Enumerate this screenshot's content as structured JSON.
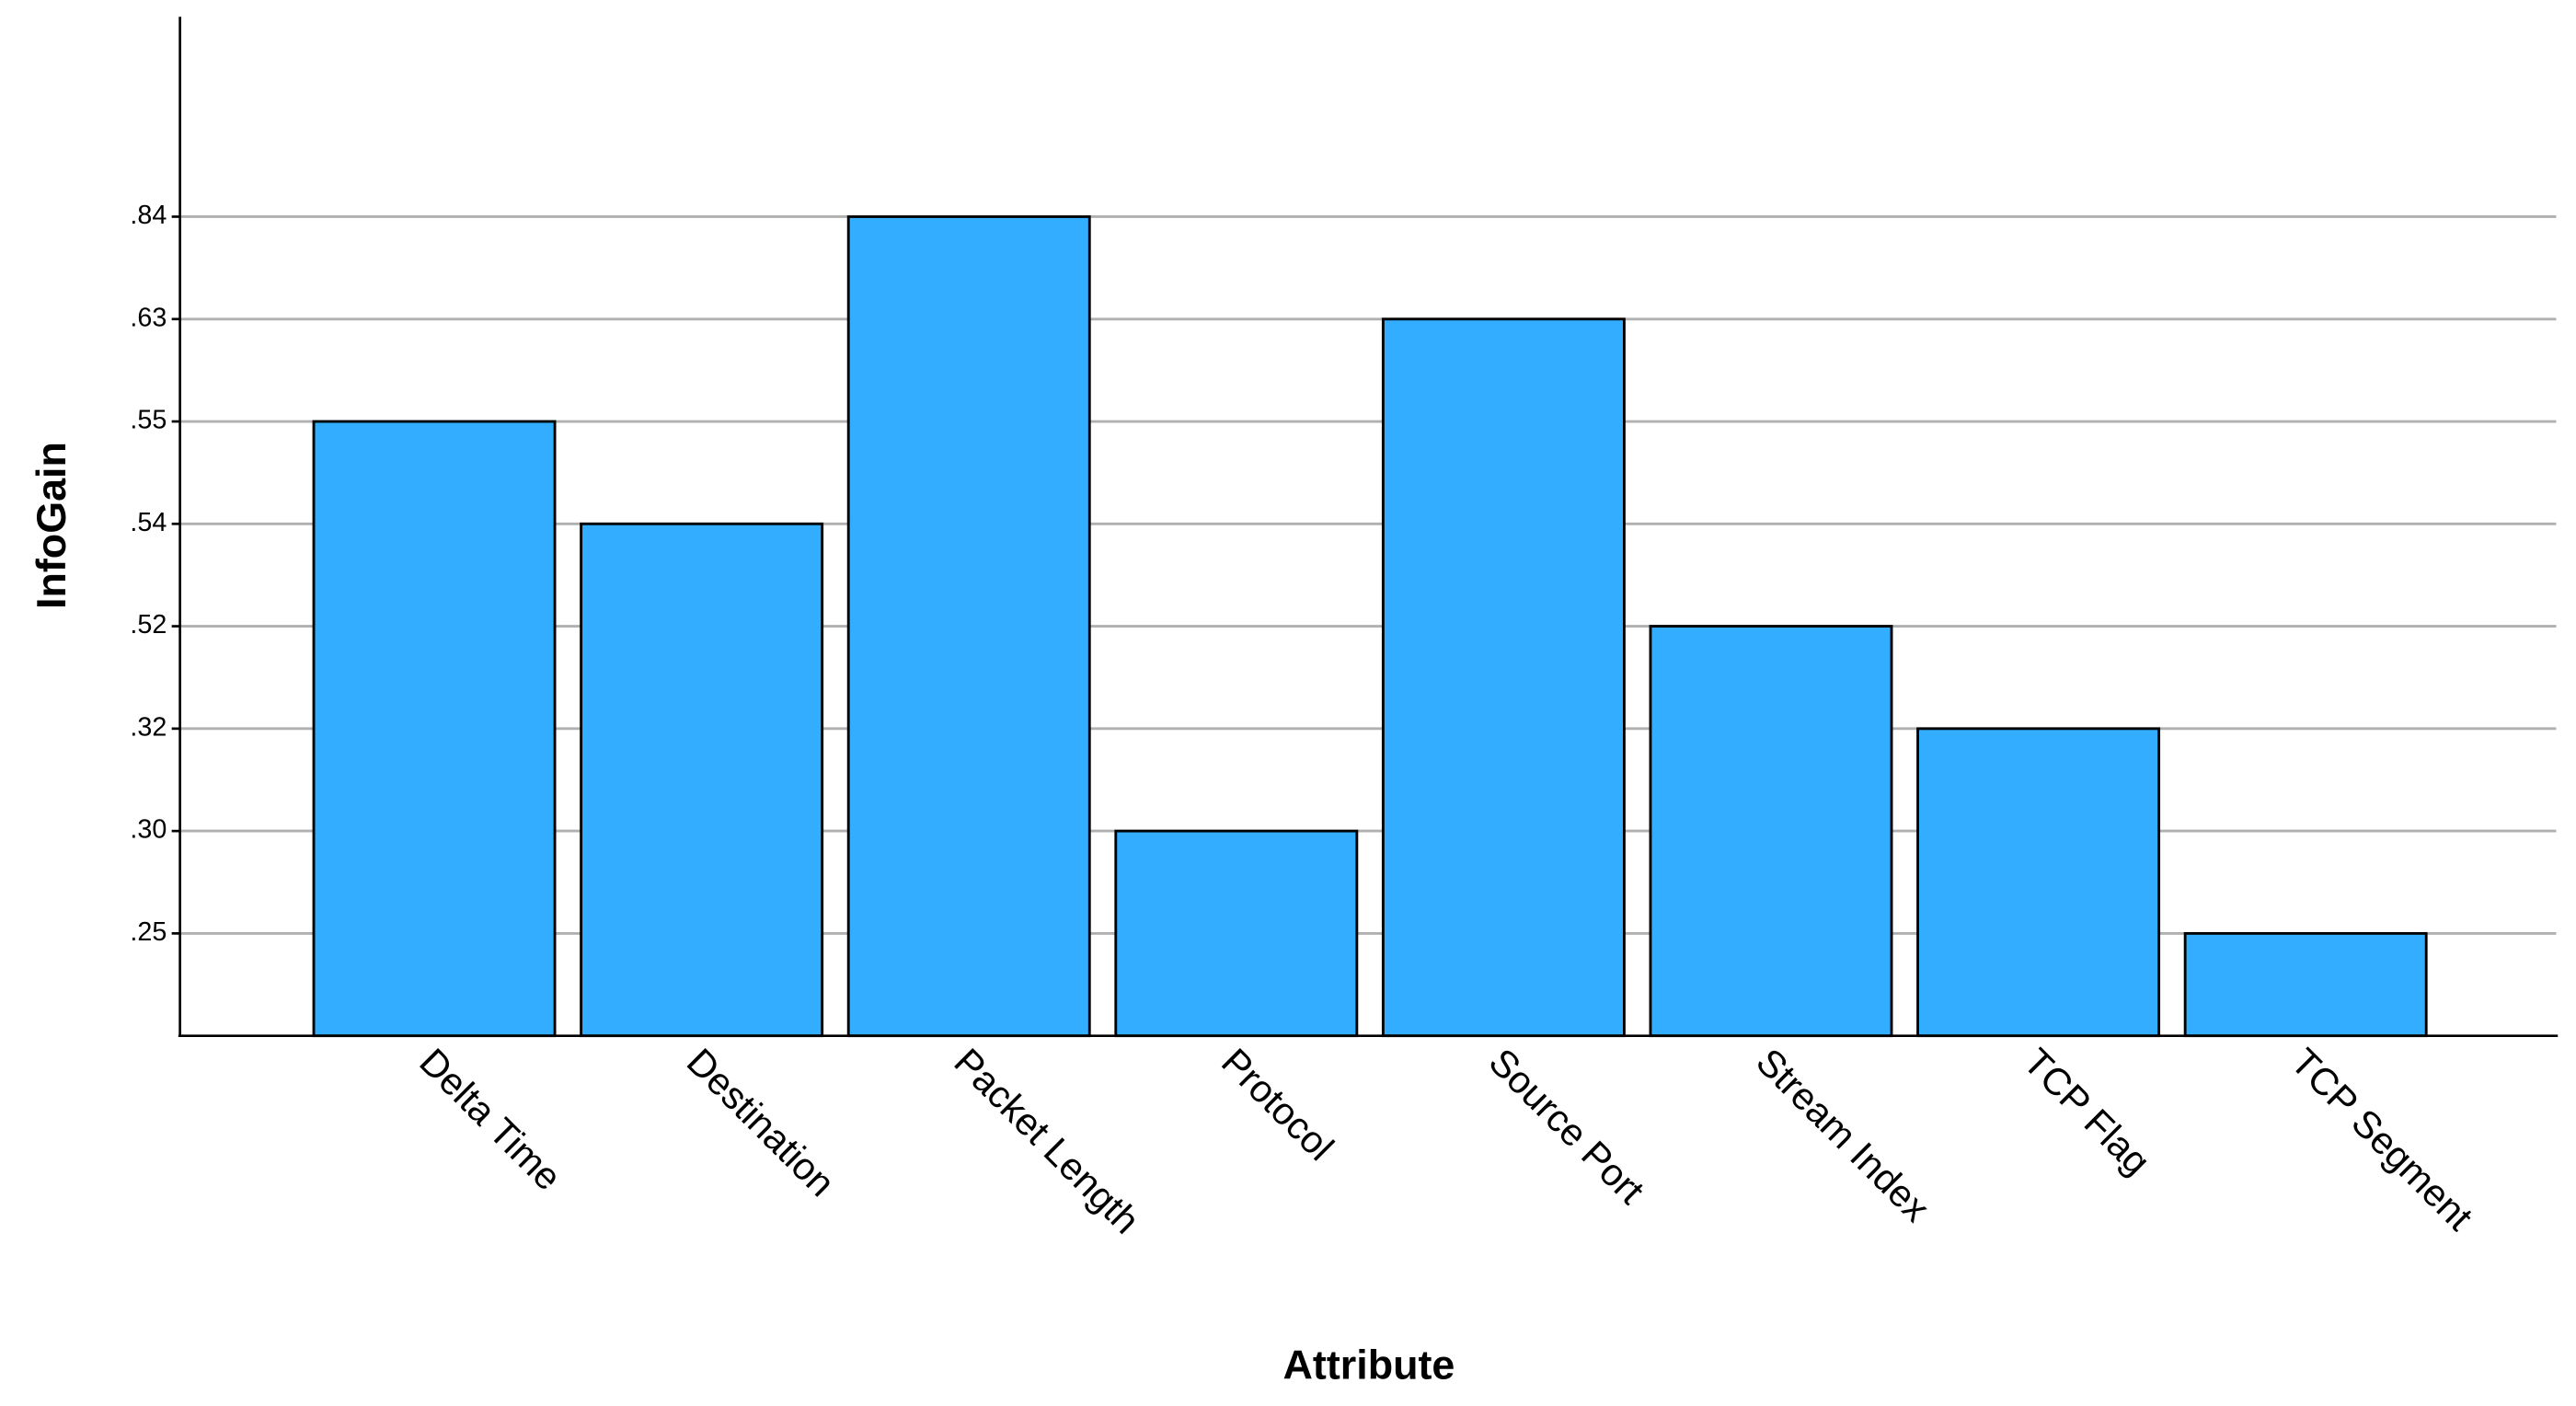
{
  "chart_data": {
    "type": "bar",
    "x_label": "Attribute",
    "y_label": "InfoGain",
    "categories": [
      "Delta Time",
      "Destination",
      "Packet Length",
      "Protocol",
      "Source Port",
      "Stream Index",
      "TCP Flag",
      "TCP Segment"
    ],
    "values": [
      0.55,
      0.54,
      0.84,
      0.3,
      0.63,
      0.52,
      0.32,
      0.25
    ],
    "color": "#33adff",
    "y_scale": "ordinal-spaced",
    "ylim": [
      0.2,
      1.04
    ],
    "yticks": [
      {
        "value": 0.25,
        "label": ".25"
      },
      {
        "value": 0.3,
        "label": ".30"
      },
      {
        "value": 0.32,
        "label": ".32"
      },
      {
        "value": 0.52,
        "label": ".52"
      },
      {
        "value": 0.54,
        "label": ".54"
      },
      {
        "value": 0.55,
        "label": ".55"
      },
      {
        "value": 0.63,
        "label": ".63"
      },
      {
        "value": 0.84,
        "label": ".84"
      }
    ],
    "grid": true
  }
}
